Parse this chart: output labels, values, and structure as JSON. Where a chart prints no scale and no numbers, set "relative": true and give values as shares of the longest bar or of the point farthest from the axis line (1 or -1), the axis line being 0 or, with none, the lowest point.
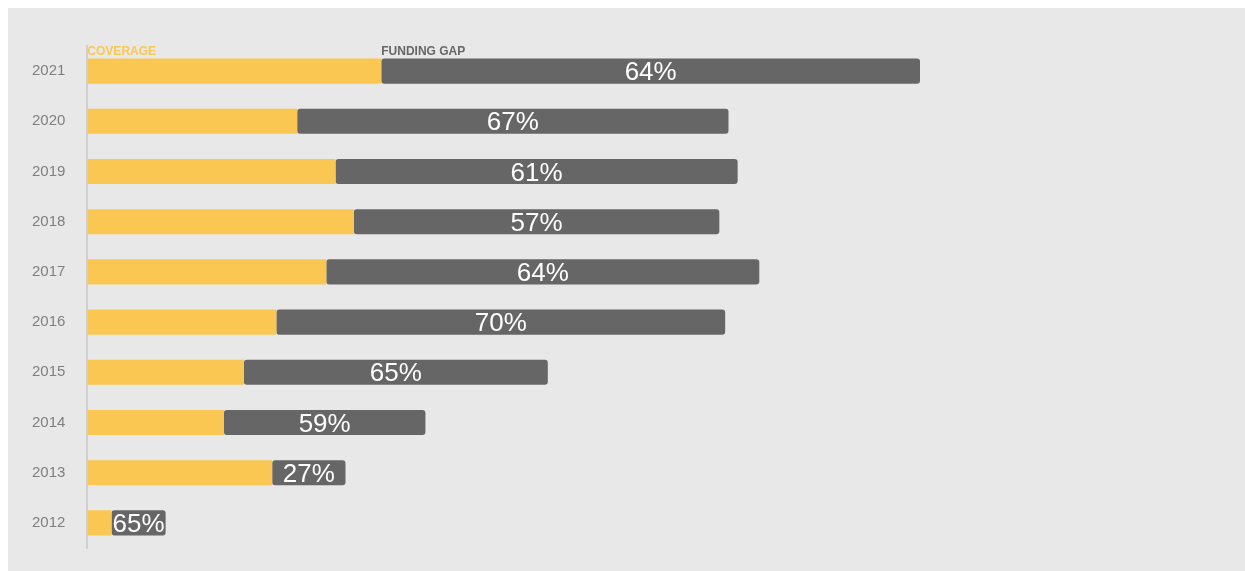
{
  "chart_data": {
    "type": "bar",
    "orientation": "horizontal",
    "stacked": true,
    "relative": true,
    "legend": false,
    "categories": [
      "2021",
      "2020",
      "2019",
      "2018",
      "2017",
      "2016",
      "2015",
      "2014",
      "2013",
      "2012"
    ],
    "series": [
      {
        "name": "COVERAGE",
        "color": "#fac852",
        "values": [
          0.353,
          0.252,
          0.298,
          0.32,
          0.287,
          0.227,
          0.188,
          0.164,
          0.222,
          0.029
        ]
      },
      {
        "name": "FUNDING GAP",
        "color": "#666666",
        "values": [
          0.647,
          0.518,
          0.483,
          0.439,
          0.52,
          0.539,
          0.365,
          0.242,
          0.088,
          0.065
        ]
      }
    ],
    "annotations": [
      "64%",
      "67%",
      "61%",
      "57%",
      "64%",
      "70%",
      "65%",
      "59%",
      "27%",
      "65%"
    ]
  }
}
